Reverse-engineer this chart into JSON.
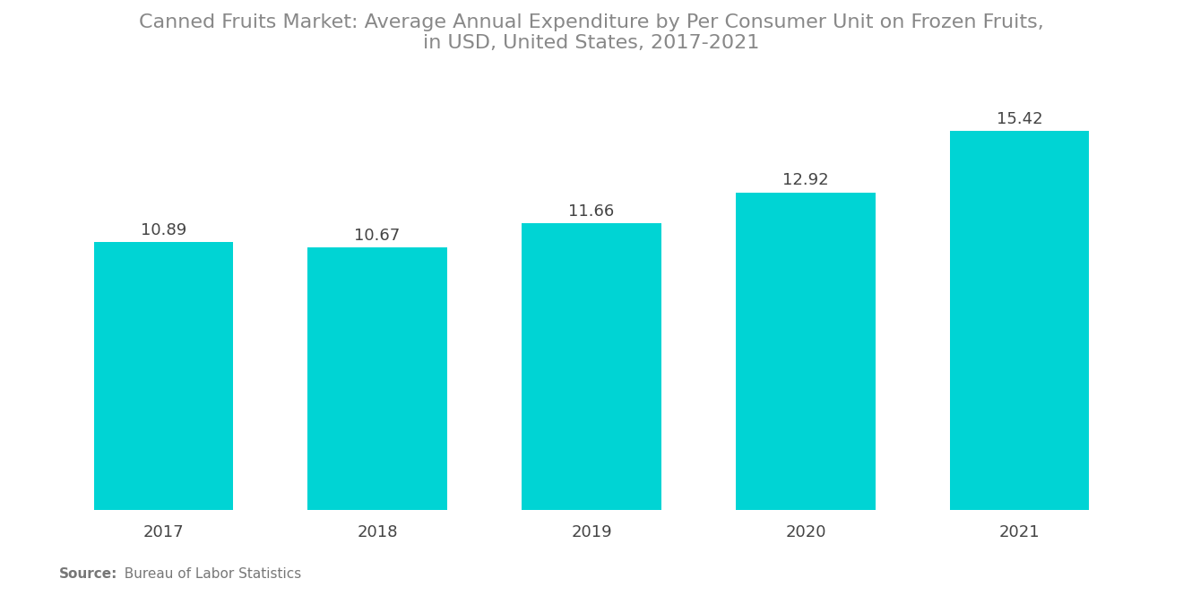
{
  "title": "Canned Fruits Market: Average Annual Expenditure by Per Consumer Unit on Frozen Fruits,\nin USD, United States, 2017-2021",
  "categories": [
    "2017",
    "2018",
    "2019",
    "2020",
    "2021"
  ],
  "values": [
    10.89,
    10.67,
    11.66,
    12.92,
    15.42
  ],
  "bar_color": "#00D4D4",
  "background_color": "#FFFFFF",
  "title_color": "#888888",
  "label_color": "#444444",
  "label_fontsize": 13,
  "title_fontsize": 16,
  "tick_fontsize": 13,
  "source_bold": "Source:",
  "source_text": "  Bureau of Labor Statistics",
  "ylim": [
    0,
    17.5
  ],
  "bar_width": 0.65
}
